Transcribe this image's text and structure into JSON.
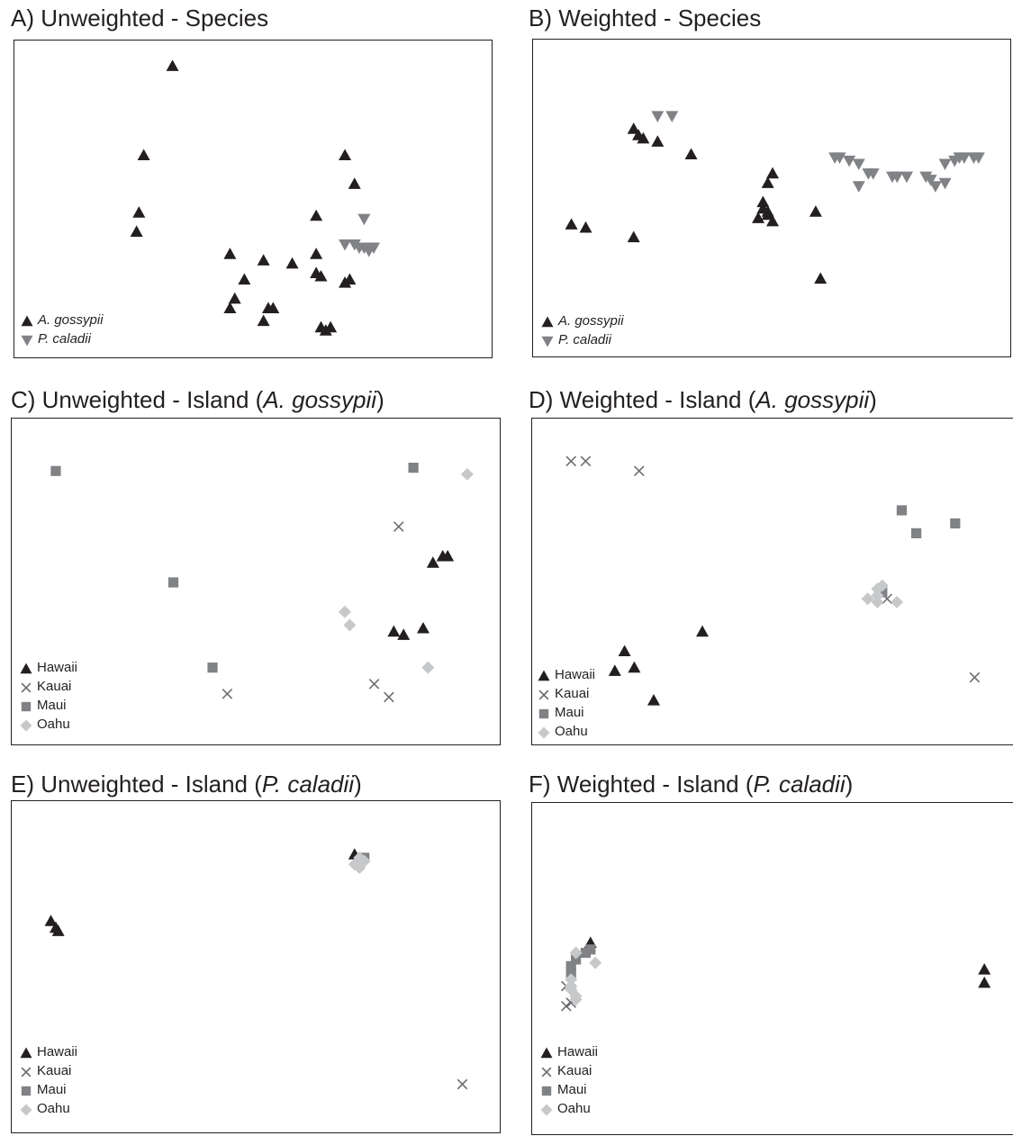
{
  "chart_data": [
    {
      "type": "scatter",
      "title_prefix": "A) Unweighted - Species",
      "title_italic": "",
      "title_suffix": "",
      "xlim": [
        0,
        1
      ],
      "ylim": [
        0,
        1
      ],
      "legend_italic": true,
      "series": [
        {
          "name": "A. gossypii",
          "marker": "triangle-up",
          "color": "#231f20",
          "points": [
            [
              0.33,
              0.92
            ],
            [
              0.27,
              0.64
            ],
            [
              0.26,
              0.46
            ],
            [
              0.255,
              0.4
            ],
            [
              0.45,
              0.33
            ],
            [
              0.52,
              0.31
            ],
            [
              0.58,
              0.3
            ],
            [
              0.63,
              0.33
            ],
            [
              0.63,
              0.45
            ],
            [
              0.48,
              0.25
            ],
            [
              0.46,
              0.19
            ],
            [
              0.45,
              0.16
            ],
            [
              0.53,
              0.16
            ],
            [
              0.54,
              0.16
            ],
            [
              0.52,
              0.12
            ],
            [
              0.63,
              0.27
            ],
            [
              0.64,
              0.26
            ],
            [
              0.64,
              0.1
            ],
            [
              0.65,
              0.09
            ],
            [
              0.66,
              0.1
            ],
            [
              0.69,
              0.24
            ],
            [
              0.69,
              0.64
            ],
            [
              0.71,
              0.55
            ],
            [
              0.7,
              0.25
            ]
          ]
        },
        {
          "name": "P. caladii",
          "marker": "triangle-down",
          "color": "#808285",
          "points": [
            [
              0.73,
              0.44
            ],
            [
              0.69,
              0.36
            ],
            [
              0.71,
              0.36
            ],
            [
              0.72,
              0.35
            ],
            [
              0.73,
              0.35
            ],
            [
              0.74,
              0.34
            ],
            [
              0.75,
              0.35
            ]
          ]
        }
      ]
    },
    {
      "type": "scatter",
      "title_prefix": "B) Weighted - Species",
      "title_italic": "",
      "title_suffix": "",
      "xlim": [
        0,
        1
      ],
      "ylim": [
        0,
        1
      ],
      "legend_italic": true,
      "series": [
        {
          "name": "A. gossypii",
          "marker": "triangle-up",
          "color": "#231f20",
          "points": [
            [
              0.21,
              0.72
            ],
            [
              0.22,
              0.7
            ],
            [
              0.23,
              0.69
            ],
            [
              0.26,
              0.68
            ],
            [
              0.33,
              0.64
            ],
            [
              0.08,
              0.42
            ],
            [
              0.11,
              0.41
            ],
            [
              0.21,
              0.38
            ],
            [
              0.5,
              0.58
            ],
            [
              0.49,
              0.55
            ],
            [
              0.48,
              0.49
            ],
            [
              0.48,
              0.47
            ],
            [
              0.49,
              0.46
            ],
            [
              0.47,
              0.44
            ],
            [
              0.49,
              0.45
            ],
            [
              0.5,
              0.43
            ],
            [
              0.59,
              0.46
            ],
            [
              0.6,
              0.25
            ]
          ]
        },
        {
          "name": "P. caladii",
          "marker": "triangle-down",
          "color": "#808285",
          "points": [
            [
              0.26,
              0.76
            ],
            [
              0.29,
              0.76
            ],
            [
              0.63,
              0.63
            ],
            [
              0.64,
              0.63
            ],
            [
              0.66,
              0.62
            ],
            [
              0.68,
              0.61
            ],
            [
              0.7,
              0.58
            ],
            [
              0.71,
              0.58
            ],
            [
              0.75,
              0.57
            ],
            [
              0.76,
              0.57
            ],
            [
              0.78,
              0.57
            ],
            [
              0.82,
              0.57
            ],
            [
              0.83,
              0.56
            ],
            [
              0.84,
              0.54
            ],
            [
              0.86,
              0.61
            ],
            [
              0.88,
              0.62
            ],
            [
              0.89,
              0.63
            ],
            [
              0.9,
              0.63
            ],
            [
              0.92,
              0.63
            ],
            [
              0.93,
              0.63
            ],
            [
              0.68,
              0.54
            ],
            [
              0.86,
              0.55
            ]
          ]
        }
      ]
    },
    {
      "type": "scatter",
      "title_prefix": "C) Unweighted - Island (",
      "title_italic": "A. gossypii",
      "title_suffix": ")",
      "xlim": [
        0,
        1
      ],
      "ylim": [
        0,
        1
      ],
      "legend_italic": false,
      "series": [
        {
          "name": "Hawaii",
          "marker": "triangle-up",
          "color": "#231f20",
          "points": [
            [
              0.86,
              0.56
            ],
            [
              0.88,
              0.58
            ],
            [
              0.89,
              0.58
            ],
            [
              0.78,
              0.35
            ],
            [
              0.8,
              0.34
            ],
            [
              0.84,
              0.36
            ]
          ]
        },
        {
          "name": "Kauai",
          "marker": "cross",
          "color": "#6d6e71",
          "points": [
            [
              0.79,
              0.67
            ],
            [
              0.44,
              0.16
            ],
            [
              0.74,
              0.19
            ],
            [
              0.77,
              0.15
            ]
          ]
        },
        {
          "name": "Maui",
          "marker": "square",
          "color": "#808285",
          "points": [
            [
              0.09,
              0.84
            ],
            [
              0.33,
              0.5
            ],
            [
              0.41,
              0.24
            ],
            [
              0.82,
              0.85
            ]
          ]
        },
        {
          "name": "Oahu",
          "marker": "diamond",
          "color": "#c7c8ca",
          "points": [
            [
              0.93,
              0.83
            ],
            [
              0.68,
              0.41
            ],
            [
              0.69,
              0.37
            ],
            [
              0.85,
              0.24
            ]
          ]
        }
      ]
    },
    {
      "type": "scatter",
      "title_prefix": "D) Weighted - Island (",
      "title_italic": "A. gossypii",
      "title_suffix": ")",
      "xlim": [
        0,
        1
      ],
      "ylim": [
        0,
        1
      ],
      "legend_italic": false,
      "series": [
        {
          "name": "Hawaii",
          "marker": "triangle-up",
          "color": "#231f20",
          "points": [
            [
              0.35,
              0.35
            ],
            [
              0.19,
              0.29
            ],
            [
              0.17,
              0.23
            ],
            [
              0.21,
              0.24
            ],
            [
              0.25,
              0.14
            ]
          ]
        },
        {
          "name": "Kauai",
          "marker": "cross",
          "color": "#6d6e71",
          "points": [
            [
              0.08,
              0.87
            ],
            [
              0.11,
              0.87
            ],
            [
              0.22,
              0.84
            ],
            [
              0.73,
              0.45
            ],
            [
              0.91,
              0.21
            ]
          ]
        },
        {
          "name": "Maui",
          "marker": "square",
          "color": "#808285",
          "points": [
            [
              0.76,
              0.72
            ],
            [
              0.79,
              0.65
            ],
            [
              0.87,
              0.68
            ],
            [
              0.72,
              0.47
            ]
          ]
        },
        {
          "name": "Oahu",
          "marker": "diamond",
          "color": "#c7c8ca",
          "points": [
            [
              0.69,
              0.45
            ],
            [
              0.71,
              0.46
            ],
            [
              0.71,
              0.44
            ],
            [
              0.75,
              0.44
            ],
            [
              0.71,
              0.48
            ],
            [
              0.72,
              0.49
            ]
          ]
        }
      ]
    },
    {
      "type": "scatter",
      "title_prefix": "E) Unweighted - Island (",
      "title_italic": "P. caladii",
      "title_suffix": ")",
      "xlim": [
        0,
        1
      ],
      "ylim": [
        0,
        1
      ],
      "legend_italic": false,
      "series": [
        {
          "name": "Hawaii",
          "marker": "triangle-up",
          "color": "#231f20",
          "points": [
            [
              0.7,
              0.84
            ],
            [
              0.08,
              0.64
            ],
            [
              0.09,
              0.62
            ],
            [
              0.095,
              0.61
            ]
          ]
        },
        {
          "name": "Kauai",
          "marker": "cross",
          "color": "#6d6e71",
          "points": [
            [
              0.92,
              0.15
            ]
          ]
        },
        {
          "name": "Maui",
          "marker": "square",
          "color": "#808285",
          "points": [
            [
              0.72,
              0.83
            ],
            [
              0.71,
              0.82
            ]
          ]
        },
        {
          "name": "Oahu",
          "marker": "diamond",
          "color": "#c7c8ca",
          "points": [
            [
              0.71,
              0.83
            ],
            [
              0.72,
              0.82
            ],
            [
              0.7,
              0.81
            ],
            [
              0.71,
              0.8
            ]
          ]
        }
      ]
    },
    {
      "type": "scatter",
      "title_prefix": "F) Weighted - Island (",
      "title_italic": "P. caladii",
      "title_suffix": ")",
      "xlim": [
        0,
        1
      ],
      "ylim": [
        0,
        1
      ],
      "legend_italic": false,
      "series": [
        {
          "name": "Hawaii",
          "marker": "triangle-up",
          "color": "#231f20",
          "points": [
            [
              0.12,
              0.58
            ],
            [
              0.93,
              0.5
            ],
            [
              0.93,
              0.46
            ]
          ]
        },
        {
          "name": "Kauai",
          "marker": "cross",
          "color": "#6d6e71",
          "points": [
            [
              0.07,
              0.45
            ],
            [
              0.07,
              0.39
            ],
            [
              0.08,
              0.4
            ]
          ]
        },
        {
          "name": "Maui",
          "marker": "square",
          "color": "#808285",
          "points": [
            [
              0.12,
              0.56
            ],
            [
              0.11,
              0.55
            ],
            [
              0.09,
              0.53
            ],
            [
              0.08,
              0.51
            ],
            [
              0.08,
              0.49
            ]
          ]
        },
        {
          "name": "Oahu",
          "marker": "diamond",
          "color": "#c7c8ca",
          "points": [
            [
              0.09,
              0.55
            ],
            [
              0.13,
              0.52
            ],
            [
              0.08,
              0.47
            ],
            [
              0.08,
              0.45
            ],
            [
              0.09,
              0.42
            ],
            [
              0.09,
              0.41
            ],
            [
              0.08,
              0.44
            ]
          ]
        }
      ]
    }
  ]
}
